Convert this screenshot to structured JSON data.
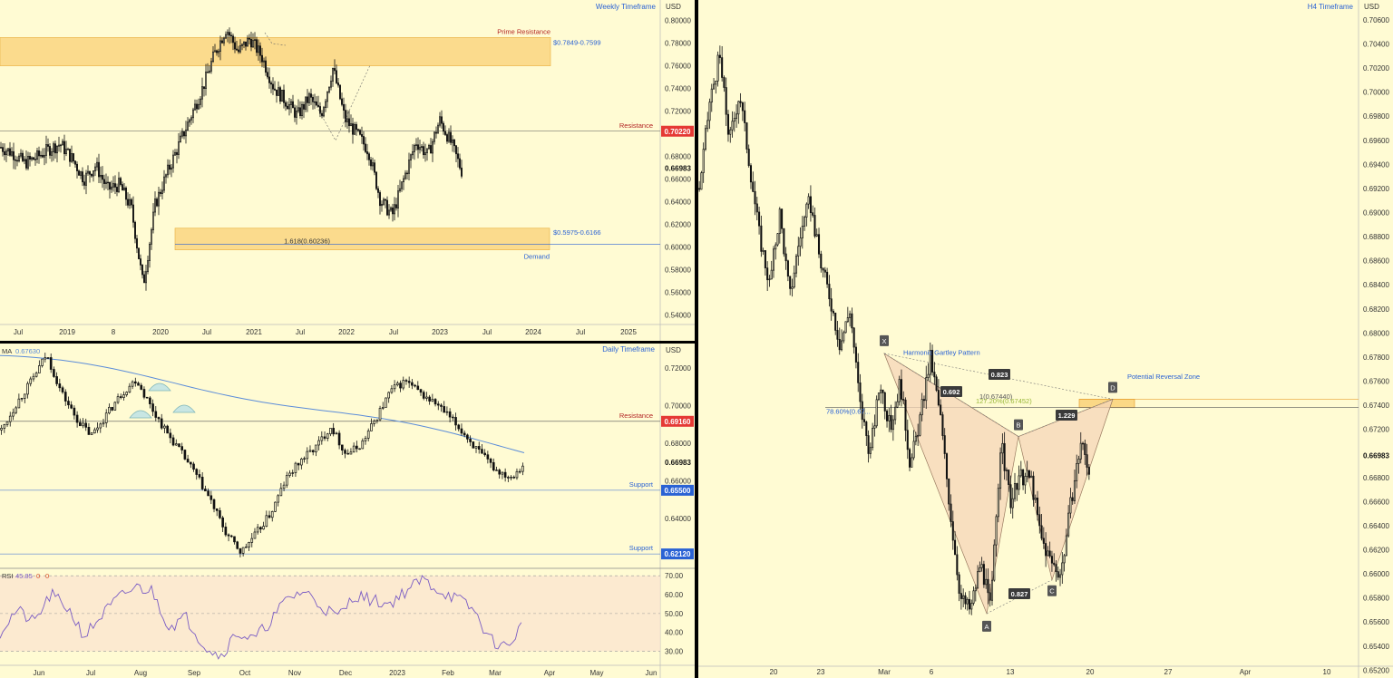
{
  "chart_data": [
    {
      "type": "candlestick",
      "title": "Weekly Timeframe",
      "currency": "USD",
      "ylim": [
        0.53,
        0.81
      ],
      "yticks": [
        "0.80000",
        "0.78000",
        "0.76000",
        "0.74000",
        "0.72000",
        "0.70000",
        "0.68000",
        "0.66000",
        "0.64000",
        "0.62000",
        "0.60000",
        "0.58000",
        "0.56000",
        "0.54000"
      ],
      "xticks": [
        "Jul",
        "2019",
        "8",
        "2020",
        "Jul",
        "2021",
        "Jul",
        "2022",
        "Jul",
        "2023",
        "Jul",
        "2024",
        "Jul",
        "2025"
      ],
      "last_price": "0.66983",
      "zones": [
        {
          "label": "Prime Resistance",
          "range_label": "$0.7849-0.7599",
          "top": 0.7849,
          "bottom": 0.7599
        },
        {
          "label": "Demand",
          "range_label": "$0.5975-0.6166",
          "top": 0.6166,
          "bottom": 0.5975,
          "fib_label": "1.618(0.60236)",
          "fib": 0.60236
        }
      ],
      "levels": [
        {
          "label": "Resistance",
          "value": 0.7022,
          "tag": "0.70220",
          "color": "#e53935"
        }
      ],
      "price_path": [
        0.688,
        0.683,
        0.674,
        0.679,
        0.686,
        0.691,
        0.678,
        0.66,
        0.672,
        0.651,
        0.655,
        0.634,
        0.566,
        0.637,
        0.665,
        0.69,
        0.715,
        0.74,
        0.77,
        0.793,
        0.772,
        0.784,
        0.768,
        0.741,
        0.729,
        0.716,
        0.732,
        0.717,
        0.758,
        0.713,
        0.7,
        0.685,
        0.641,
        0.628,
        0.661,
        0.693,
        0.681,
        0.712,
        0.691,
        0.663
      ]
    },
    {
      "type": "candlestick",
      "title": "Daily Timeframe",
      "currency": "USD",
      "ylim": [
        0.615,
        0.73
      ],
      "yticks": [
        "0.72000",
        "0.70000",
        "0.68000",
        "0.66000",
        "0.64000"
      ],
      "xticks": [
        "Jun",
        "Jul",
        "Aug",
        "Sep",
        "Oct",
        "Nov",
        "Dec",
        "2023",
        "Feb",
        "Mar",
        "Apr",
        "May",
        "Jun"
      ],
      "last_price": "0.66983",
      "ma": {
        "label": "MA",
        "value": "0.67630",
        "color": "#5b8cd9"
      },
      "levels": [
        {
          "label": "Resistance",
          "value": 0.6916,
          "tag": "0.69160",
          "color": "#e53935"
        },
        {
          "label": "Support",
          "value": 0.655,
          "tag": "0.65500",
          "color": "#2a62d4"
        },
        {
          "label": "Support",
          "value": 0.6212,
          "tag": "0.62120",
          "color": "#2a62d4"
        }
      ],
      "price_path": [
        0.687,
        0.701,
        0.713,
        0.727,
        0.707,
        0.693,
        0.684,
        0.695,
        0.706,
        0.714,
        0.699,
        0.686,
        0.675,
        0.663,
        0.649,
        0.632,
        0.622,
        0.632,
        0.643,
        0.661,
        0.671,
        0.678,
        0.689,
        0.674,
        0.679,
        0.693,
        0.708,
        0.713,
        0.706,
        0.701,
        0.693,
        0.684,
        0.674,
        0.666,
        0.662,
        0.67
      ]
    },
    {
      "type": "line",
      "title": "RSI",
      "indicator_label": "RSI",
      "indicator_value": "45.85",
      "extra_values": [
        "0",
        "0"
      ],
      "ylim": [
        25,
        72
      ],
      "yticks": [
        "70.00",
        "60.00",
        "50.00",
        "40.00",
        "30.00"
      ],
      "band": [
        30,
        70
      ],
      "values": [
        40,
        52,
        45,
        60,
        53,
        38,
        49,
        58,
        64,
        62,
        43,
        48,
        34,
        27,
        40,
        36,
        46,
        58,
        62,
        54,
        48,
        60,
        57,
        55,
        62,
        68,
        62,
        58,
        52,
        36,
        32,
        46
      ]
    },
    {
      "type": "candlestick",
      "title": "H4 Timeframe",
      "currency": "USD",
      "ylim": [
        0.6518,
        0.7075
      ],
      "yticks": [
        "0.70600",
        "0.70400",
        "0.70200",
        "0.70000",
        "0.69800",
        "0.69600",
        "0.69400",
        "0.69200",
        "0.69000",
        "0.68800",
        "0.68600",
        "0.68400",
        "0.68200",
        "0.68000",
        "0.67800",
        "0.67600",
        "0.67400",
        "0.67200",
        "0.66983",
        "0.66800",
        "0.66600",
        "0.66400",
        "0.66200",
        "0.66000",
        "0.65800",
        "0.65600",
        "0.65400",
        "0.65200"
      ],
      "xticks": [
        "20",
        "23",
        "Mar",
        "6",
        "13",
        "20",
        "27",
        "Apr",
        "10"
      ],
      "pattern": {
        "name": "Harmonic Gartley Pattern",
        "zone_label": "Potential Reversal Zone",
        "points": [
          {
            "label": "X",
            "price": 0.6783
          },
          {
            "label": "A",
            "price": 0.6567
          },
          {
            "label": "B",
            "price": 0.6714
          },
          {
            "label": "C",
            "price": 0.6595
          },
          {
            "label": "D",
            "price": 0.6745
          }
        ],
        "ratios": [
          "0.823",
          "0.692",
          "1.229",
          "0.827"
        ],
        "fib_labels": [
          "1(0.67440)",
          "127.20%(0.67452)",
          "78.60%(0.67..."
        ]
      },
      "price_path": [
        0.692,
        0.699,
        0.703,
        0.696,
        0.7,
        0.694,
        0.688,
        0.684,
        0.69,
        0.683,
        0.688,
        0.691,
        0.686,
        0.683,
        0.679,
        0.682,
        0.674,
        0.67,
        0.676,
        0.672,
        0.676,
        0.669,
        0.673,
        0.678,
        0.673,
        0.665,
        0.658,
        0.657,
        0.661,
        0.657,
        0.671,
        0.666,
        0.668,
        0.668,
        0.663,
        0.661,
        0.66,
        0.666,
        0.671,
        0.668
      ]
    }
  ]
}
